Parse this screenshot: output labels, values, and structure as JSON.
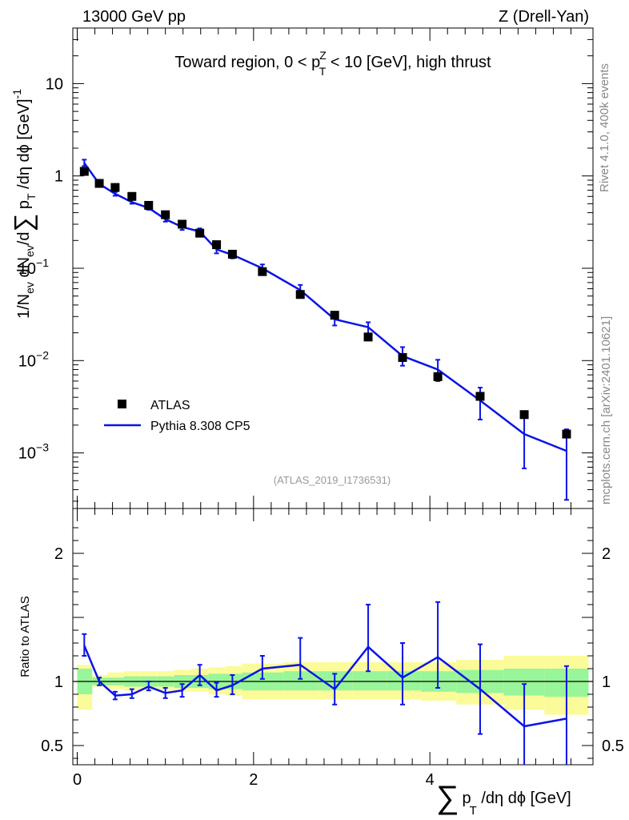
{
  "header": {
    "left": "13000 GeV pp",
    "right": "Z (Drell-Yan)"
  },
  "side_labels": {
    "rivet": "Rivet 4.1.0,  400k events",
    "mcplots": "mcplots.cern.ch [arXiv:2401.10621]"
  },
  "colors": {
    "mc": "#0a14e6",
    "data": "#000000",
    "band_inner": "#99f599",
    "band_outer": "#fbfb99"
  },
  "chart_data": [
    {
      "type": "scatter",
      "panel": "main",
      "title": "Toward region, 0 < p_T^Z < 10 [GeV], high thrust",
      "ylabel": "1/N_ev dN_ev/dΣ p_T /dη dφ [GeV]^-1",
      "yscale": "log",
      "ylim": [
        0.00025,
        40
      ],
      "xlim": [
        -0.05,
        5.85
      ],
      "yticks": [
        {
          "v": 0.001,
          "m": "10",
          "e": "−3"
        },
        {
          "v": 0.01,
          "m": "10",
          "e": "−2"
        },
        {
          "v": 0.1,
          "m": "10",
          "e": "−1"
        },
        {
          "v": 1,
          "m": "1",
          "e": ""
        },
        {
          "v": 10,
          "m": "10",
          "e": ""
        }
      ],
      "watermark": "(ATLAS_2019_I1736531)",
      "legend": [
        {
          "name": "ATLAS",
          "kind": "marker"
        },
        {
          "name": "Pythia 8.308 CP5",
          "kind": "line"
        }
      ],
      "x": [
        0.08,
        0.25,
        0.43,
        0.62,
        0.81,
        1.0,
        1.19,
        1.39,
        1.58,
        1.76,
        2.1,
        2.53,
        2.92,
        3.3,
        3.69,
        4.09,
        4.57,
        5.07,
        5.55
      ],
      "series": [
        {
          "name": "ATLAS",
          "values": [
            1.12,
            0.83,
            0.75,
            0.6,
            0.48,
            0.38,
            0.3,
            0.24,
            0.18,
            0.142,
            0.092,
            0.052,
            0.031,
            0.018,
            0.0108,
            0.0067,
            0.0041,
            0.0026,
            0.0016
          ]
        },
        {
          "name": "Pythia 8.308 CP5",
          "values": [
            1.38,
            0.82,
            0.64,
            0.52,
            0.45,
            0.34,
            0.28,
            0.25,
            0.16,
            0.14,
            0.1,
            0.058,
            0.028,
            0.023,
            0.0112,
            0.008,
            0.0037,
            0.0016,
            0.00105
          ],
          "err_lo": [
            1.28,
            0.79,
            0.61,
            0.5,
            0.43,
            0.32,
            0.26,
            0.225,
            0.145,
            0.128,
            0.09,
            0.048,
            0.024,
            0.019,
            0.0088,
            0.006,
            0.0023,
            0.00068,
            0.00031
          ],
          "err_hi": [
            1.5,
            0.86,
            0.67,
            0.55,
            0.48,
            0.36,
            0.3,
            0.27,
            0.18,
            0.152,
            0.11,
            0.066,
            0.032,
            0.026,
            0.014,
            0.0102,
            0.0051,
            0.0025,
            0.0018
          ]
        }
      ]
    },
    {
      "type": "line",
      "panel": "ratio",
      "ylabel": "Ratio to ATLAS",
      "xlabel": "Σ p_T /dη dφ [GeV]",
      "ylim": [
        0.35,
        2.35
      ],
      "xlim": [
        -0.05,
        5.85
      ],
      "xticks": [
        0,
        2,
        4
      ],
      "yticks": [
        0.5,
        1,
        2
      ],
      "bin_edges": [
        0.0,
        0.17,
        0.34,
        0.53,
        0.72,
        0.91,
        1.1,
        1.29,
        1.49,
        1.68,
        1.87,
        2.34,
        2.73,
        3.12,
        3.51,
        3.9,
        4.3,
        4.84,
        5.3,
        5.8
      ],
      "band_inner": [
        [
          0.9,
          1.1
        ],
        [
          0.97,
          1.03
        ],
        [
          0.97,
          1.03
        ],
        [
          0.96,
          1.04
        ],
        [
          0.96,
          1.04
        ],
        [
          0.96,
          1.04
        ],
        [
          0.95,
          1.05
        ],
        [
          0.95,
          1.05
        ],
        [
          0.94,
          1.06
        ],
        [
          0.94,
          1.06
        ],
        [
          0.93,
          1.07
        ],
        [
          0.93,
          1.08
        ],
        [
          0.93,
          1.08
        ],
        [
          0.93,
          1.08
        ],
        [
          0.93,
          1.08
        ],
        [
          0.92,
          1.08
        ],
        [
          0.91,
          1.09
        ],
        [
          0.89,
          1.1
        ],
        [
          0.88,
          1.1
        ]
      ],
      "band_outer": [
        [
          0.78,
          1.13
        ],
        [
          0.96,
          1.05
        ],
        [
          0.94,
          1.07
        ],
        [
          0.93,
          1.08
        ],
        [
          0.93,
          1.08
        ],
        [
          0.93,
          1.08
        ],
        [
          0.92,
          1.09
        ],
        [
          0.92,
          1.1
        ],
        [
          0.9,
          1.11
        ],
        [
          0.89,
          1.12
        ],
        [
          0.86,
          1.14
        ],
        [
          0.86,
          1.15
        ],
        [
          0.86,
          1.15
        ],
        [
          0.86,
          1.15
        ],
        [
          0.86,
          1.15
        ],
        [
          0.85,
          1.15
        ],
        [
          0.82,
          1.17
        ],
        [
          0.78,
          1.2
        ],
        [
          0.74,
          1.2
        ]
      ],
      "x": [
        0.08,
        0.25,
        0.43,
        0.62,
        0.81,
        1.0,
        1.19,
        1.39,
        1.58,
        1.76,
        2.1,
        2.53,
        2.92,
        3.3,
        3.69,
        4.09,
        4.57,
        5.07,
        5.55
      ],
      "values": [
        1.28,
        1.0,
        0.89,
        0.9,
        0.96,
        0.91,
        0.93,
        1.05,
        0.93,
        0.97,
        1.1,
        1.13,
        0.94,
        1.27,
        1.03,
        1.19,
        0.94,
        0.65,
        0.71
      ],
      "err_lo": [
        1.2,
        0.97,
        0.86,
        0.87,
        0.93,
        0.87,
        0.88,
        0.97,
        0.88,
        0.9,
        1.02,
        1.02,
        0.82,
        1.08,
        0.82,
        0.95,
        0.59,
        0.32,
        0.3
      ],
      "err_hi": [
        1.37,
        1.03,
        0.92,
        0.94,
        1.0,
        0.95,
        0.98,
        1.13,
        0.99,
        1.05,
        1.2,
        1.34,
        1.06,
        1.6,
        1.3,
        1.62,
        1.29,
        0.98,
        1.12
      ]
    }
  ]
}
